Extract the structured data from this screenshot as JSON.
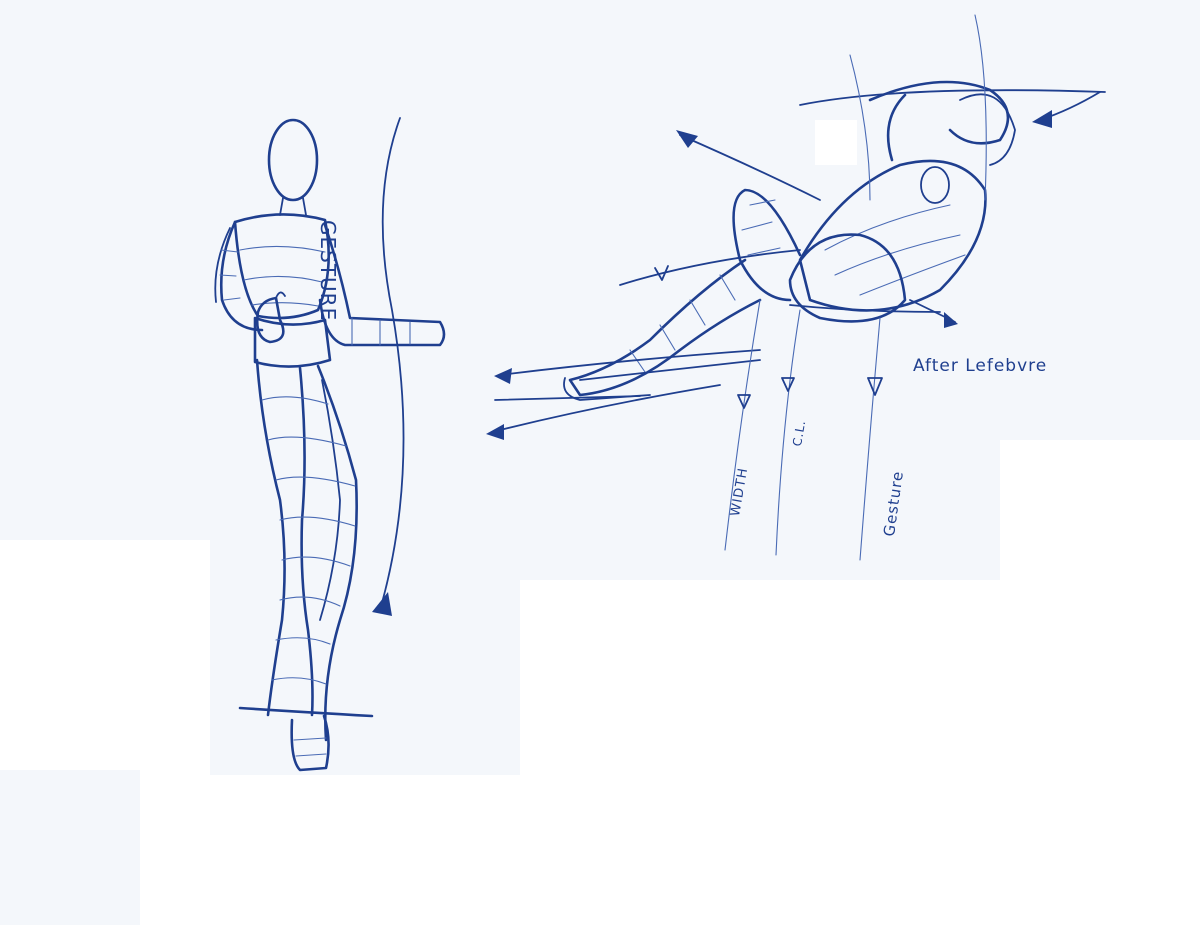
{
  "annotations": {
    "gesture_vertical": "GESTURE",
    "after_credit": "After Lefebvre",
    "width_label": "WIDTH",
    "cl_label": "C.L.",
    "gesture_small": "Gesture"
  },
  "colors": {
    "ink": "#1f3f8f",
    "paper": "#f4f7fb",
    "background": "#ffffff"
  }
}
